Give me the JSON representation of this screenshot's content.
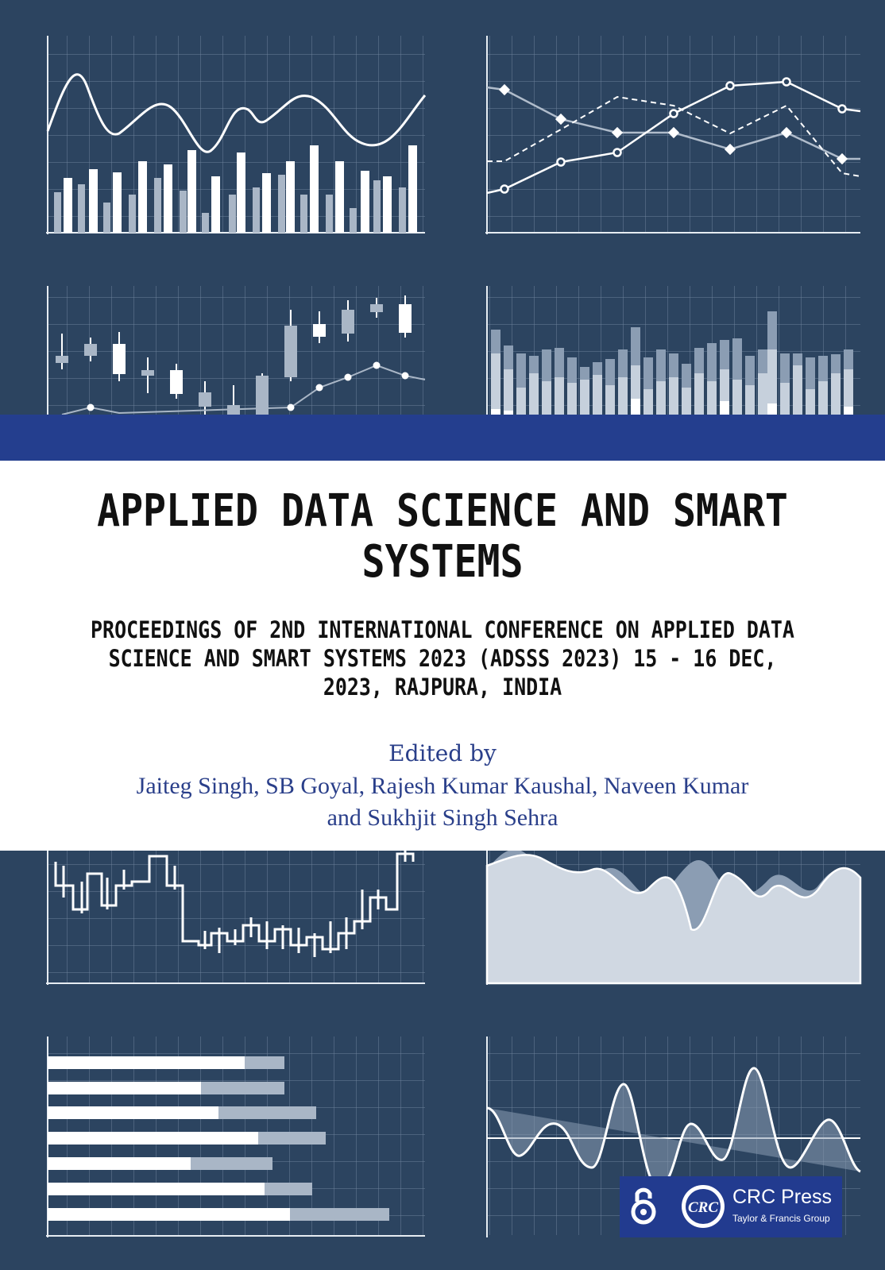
{
  "book": {
    "title": "APPLIED DATA SCIENCE AND SMART SYSTEMS",
    "subtitle": "PROCEEDINGS OF 2ND INTERNATIONAL CONFERENCE ON APPLIED DATA SCIENCE AND SMART SYSTEMS 2023 (ADSSS 2023) 15 - 16 DEC, 2023, RAJPURA, INDIA",
    "edited_by": "Edited by",
    "editors_line1": "Jaiteg Singh, SB Goyal, Rajesh Kumar Kaushal, Naveen Kumar",
    "editors_line2": "and Sukhjit Singh Sehra"
  },
  "publisher": {
    "name": "CRC Press",
    "group": "Taylor & Francis Group",
    "logo_text": "CRC",
    "open_access_icon": "open-access-icon"
  },
  "colors": {
    "background": "#2c4460",
    "band": "#243e8e",
    "title_text": "#111111",
    "editor_text": "#2a3f8a"
  }
}
